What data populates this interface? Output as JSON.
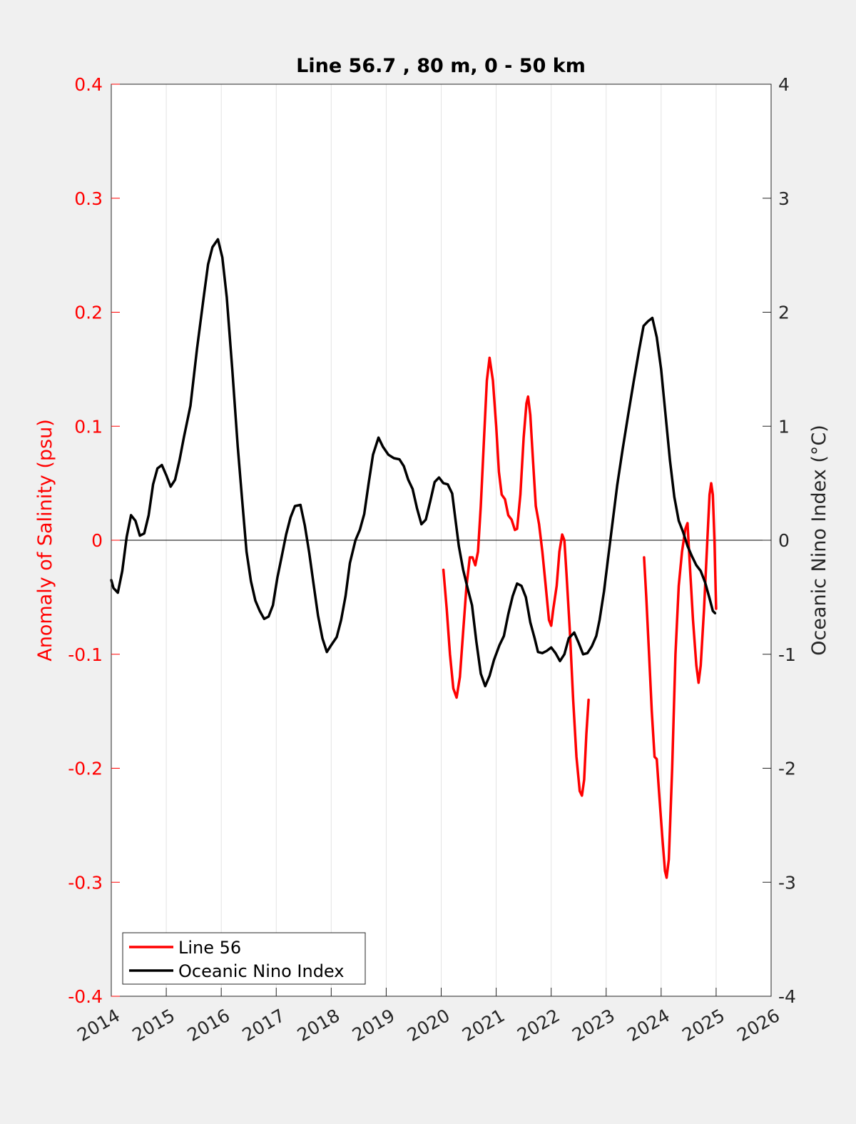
{
  "chart_data": {
    "type": "line",
    "title": "Line 56.7 , 80 m, 0 - 50 km",
    "xlabel": "",
    "ylabel_left": "Anomaly of Salinity (psu)",
    "ylabel_right": "Oceanic Nino Index (°C)",
    "xlim": [
      2014,
      2026
    ],
    "ylim_left": [
      -0.4,
      0.4
    ],
    "ylim_right": [
      -4,
      4
    ],
    "x_ticks": [
      "2014",
      "2015",
      "2016",
      "2017",
      "2018",
      "2019",
      "2020",
      "2021",
      "2022",
      "2023",
      "2024",
      "2025",
      "2026"
    ],
    "y_ticks_left": [
      "0.4",
      "0.3",
      "0.2",
      "0.1",
      "0",
      "-0.1",
      "-0.2",
      "-0.3",
      "-0.4"
    ],
    "y_ticks_right": [
      "4",
      "3",
      "2",
      "1",
      "0",
      "-1",
      "-2",
      "-3",
      "-4"
    ],
    "grid": "vertical",
    "zero_line": true,
    "legend_position": "bottom-left",
    "colors": {
      "left_axis": "#ff0000",
      "right_axis": "#000000"
    },
    "series": [
      {
        "name": "Line 56",
        "axis": "left",
        "color": "#ff0000",
        "segments": [
          [
            [
              2020.04,
              -0.026
            ],
            [
              2020.1,
              -0.06
            ],
            [
              2020.16,
              -0.1
            ],
            [
              2020.22,
              -0.13
            ],
            [
              2020.28,
              -0.138
            ],
            [
              2020.34,
              -0.12
            ],
            [
              2020.4,
              -0.08
            ],
            [
              2020.46,
              -0.04
            ],
            [
              2020.52,
              -0.015
            ],
            [
              2020.57,
              -0.015
            ],
            [
              2020.62,
              -0.022
            ],
            [
              2020.67,
              -0.01
            ],
            [
              2020.72,
              0.03
            ],
            [
              2020.78,
              0.09
            ],
            [
              2020.83,
              0.14
            ],
            [
              2020.88,
              0.16
            ],
            [
              2020.94,
              0.14
            ],
            [
              2021.0,
              0.1
            ],
            [
              2021.05,
              0.06
            ],
            [
              2021.1,
              0.04
            ],
            [
              2021.16,
              0.036
            ],
            [
              2021.22,
              0.022
            ],
            [
              2021.28,
              0.018
            ],
            [
              2021.34,
              0.009
            ],
            [
              2021.38,
              0.01
            ],
            [
              2021.44,
              0.04
            ],
            [
              2021.5,
              0.09
            ],
            [
              2021.55,
              0.12
            ],
            [
              2021.58,
              0.126
            ],
            [
              2021.62,
              0.11
            ],
            [
              2021.67,
              0.07
            ],
            [
              2021.72,
              0.03
            ],
            [
              2021.78,
              0.014
            ],
            [
              2021.84,
              -0.01
            ],
            [
              2021.9,
              -0.04
            ],
            [
              2021.96,
              -0.07
            ],
            [
              2022.0,
              -0.075
            ],
            [
              2022.04,
              -0.06
            ],
            [
              2022.1,
              -0.04
            ],
            [
              2022.15,
              -0.01
            ],
            [
              2022.2,
              0.005
            ],
            [
              2022.24,
              0.0
            ],
            [
              2022.28,
              -0.03
            ],
            [
              2022.34,
              -0.08
            ],
            [
              2022.4,
              -0.14
            ],
            [
              2022.46,
              -0.19
            ],
            [
              2022.52,
              -0.22
            ],
            [
              2022.56,
              -0.224
            ],
            [
              2022.6,
              -0.21
            ],
            [
              2022.64,
              -0.17
            ],
            [
              2022.68,
              -0.14
            ]
          ],
          [
            [
              2023.69,
              -0.015
            ],
            [
              2023.73,
              -0.05
            ],
            [
              2023.78,
              -0.1
            ],
            [
              2023.83,
              -0.15
            ],
            [
              2023.88,
              -0.19
            ],
            [
              2023.92,
              -0.192
            ],
            [
              2023.96,
              -0.22
            ],
            [
              2024.02,
              -0.26
            ],
            [
              2024.07,
              -0.29
            ],
            [
              2024.1,
              -0.296
            ],
            [
              2024.14,
              -0.28
            ],
            [
              2024.2,
              -0.2
            ],
            [
              2024.26,
              -0.1
            ],
            [
              2024.32,
              -0.04
            ],
            [
              2024.38,
              -0.01
            ],
            [
              2024.44,
              0.01
            ],
            [
              2024.48,
              0.015
            ],
            [
              2024.52,
              -0.02
            ],
            [
              2024.58,
              -0.07
            ],
            [
              2024.64,
              -0.11
            ],
            [
              2024.68,
              -0.125
            ],
            [
              2024.72,
              -0.11
            ],
            [
              2024.78,
              -0.06
            ],
            [
              2024.84,
              0.0
            ],
            [
              2024.88,
              0.04
            ],
            [
              2024.91,
              0.05
            ],
            [
              2024.94,
              0.04
            ],
            [
              2024.97,
              0.0
            ],
            [
              2025.0,
              -0.06
            ]
          ]
        ]
      },
      {
        "name": "Oceanic Nino Index",
        "axis": "right",
        "color": "#000000",
        "points": [
          [
            2014.0,
            -0.35
          ],
          [
            2014.04,
            -0.42
          ],
          [
            2014.12,
            -0.46
          ],
          [
            2014.2,
            -0.27
          ],
          [
            2014.28,
            0.03
          ],
          [
            2014.36,
            0.22
          ],
          [
            2014.44,
            0.17
          ],
          [
            2014.52,
            0.04
          ],
          [
            2014.6,
            0.06
          ],
          [
            2014.68,
            0.22
          ],
          [
            2014.76,
            0.49
          ],
          [
            2014.84,
            0.63
          ],
          [
            2014.92,
            0.66
          ],
          [
            2015.0,
            0.57
          ],
          [
            2015.08,
            0.47
          ],
          [
            2015.16,
            0.53
          ],
          [
            2015.24,
            0.7
          ],
          [
            2015.32,
            0.9
          ],
          [
            2015.44,
            1.18
          ],
          [
            2015.56,
            1.68
          ],
          [
            2015.68,
            2.13
          ],
          [
            2015.76,
            2.42
          ],
          [
            2015.84,
            2.57
          ],
          [
            2015.94,
            2.64
          ],
          [
            2016.02,
            2.48
          ],
          [
            2016.1,
            2.13
          ],
          [
            2016.2,
            1.5
          ],
          [
            2016.3,
            0.82
          ],
          [
            2016.38,
            0.35
          ],
          [
            2016.46,
            -0.1
          ],
          [
            2016.54,
            -0.36
          ],
          [
            2016.62,
            -0.53
          ],
          [
            2016.7,
            -0.62
          ],
          [
            2016.78,
            -0.69
          ],
          [
            2016.86,
            -0.67
          ],
          [
            2016.94,
            -0.57
          ],
          [
            2017.02,
            -0.33
          ],
          [
            2017.1,
            -0.14
          ],
          [
            2017.18,
            0.05
          ],
          [
            2017.26,
            0.2
          ],
          [
            2017.34,
            0.3
          ],
          [
            2017.44,
            0.31
          ],
          [
            2017.52,
            0.13
          ],
          [
            2017.6,
            -0.11
          ],
          [
            2017.68,
            -0.39
          ],
          [
            2017.76,
            -0.66
          ],
          [
            2017.84,
            -0.86
          ],
          [
            2017.92,
            -0.98
          ],
          [
            2018.0,
            -0.92
          ],
          [
            2018.1,
            -0.85
          ],
          [
            2018.18,
            -0.7
          ],
          [
            2018.26,
            -0.49
          ],
          [
            2018.34,
            -0.2
          ],
          [
            2018.44,
            0.0
          ],
          [
            2018.52,
            0.09
          ],
          [
            2018.6,
            0.23
          ],
          [
            2018.68,
            0.5
          ],
          [
            2018.76,
            0.75
          ],
          [
            2018.86,
            0.9
          ],
          [
            2018.94,
            0.82
          ],
          [
            2019.04,
            0.75
          ],
          [
            2019.14,
            0.72
          ],
          [
            2019.24,
            0.71
          ],
          [
            2019.32,
            0.65
          ],
          [
            2019.4,
            0.53
          ],
          [
            2019.48,
            0.45
          ],
          [
            2019.56,
            0.28
          ],
          [
            2019.64,
            0.14
          ],
          [
            2019.72,
            0.18
          ],
          [
            2019.8,
            0.34
          ],
          [
            2019.88,
            0.51
          ],
          [
            2019.96,
            0.55
          ],
          [
            2020.04,
            0.5
          ],
          [
            2020.12,
            0.49
          ],
          [
            2020.2,
            0.41
          ],
          [
            2020.26,
            0.18
          ],
          [
            2020.32,
            -0.05
          ],
          [
            2020.4,
            -0.26
          ],
          [
            2020.48,
            -0.42
          ],
          [
            2020.56,
            -0.57
          ],
          [
            2020.64,
            -0.89
          ],
          [
            2020.72,
            -1.17
          ],
          [
            2020.8,
            -1.28
          ],
          [
            2020.88,
            -1.19
          ],
          [
            2020.96,
            -1.05
          ],
          [
            2021.06,
            -0.92
          ],
          [
            2021.14,
            -0.84
          ],
          [
            2021.22,
            -0.65
          ],
          [
            2021.3,
            -0.49
          ],
          [
            2021.38,
            -0.38
          ],
          [
            2021.46,
            -0.4
          ],
          [
            2021.54,
            -0.5
          ],
          [
            2021.62,
            -0.72
          ],
          [
            2021.7,
            -0.86
          ],
          [
            2021.76,
            -0.98
          ],
          [
            2021.84,
            -0.99
          ],
          [
            2021.92,
            -0.97
          ],
          [
            2022.0,
            -0.94
          ],
          [
            2022.08,
            -0.99
          ],
          [
            2022.16,
            -1.06
          ],
          [
            2022.24,
            -1.0
          ],
          [
            2022.32,
            -0.86
          ],
          [
            2022.42,
            -0.81
          ],
          [
            2022.5,
            -0.9
          ],
          [
            2022.58,
            -1.0
          ],
          [
            2022.66,
            -0.99
          ],
          [
            2022.74,
            -0.93
          ],
          [
            2022.82,
            -0.84
          ],
          [
            2022.88,
            -0.7
          ],
          [
            2022.96,
            -0.45
          ],
          [
            2023.04,
            -0.14
          ],
          [
            2023.12,
            0.17
          ],
          [
            2023.2,
            0.48
          ],
          [
            2023.3,
            0.8
          ],
          [
            2023.4,
            1.1
          ],
          [
            2023.5,
            1.39
          ],
          [
            2023.6,
            1.67
          ],
          [
            2023.68,
            1.88
          ],
          [
            2023.76,
            1.92
          ],
          [
            2023.84,
            1.95
          ],
          [
            2023.92,
            1.78
          ],
          [
            2024.0,
            1.5
          ],
          [
            2024.08,
            1.1
          ],
          [
            2024.16,
            0.7
          ],
          [
            2024.24,
            0.38
          ],
          [
            2024.32,
            0.17
          ],
          [
            2024.4,
            0.07
          ],
          [
            2024.48,
            -0.05
          ],
          [
            2024.56,
            -0.14
          ],
          [
            2024.64,
            -0.22
          ],
          [
            2024.72,
            -0.27
          ],
          [
            2024.8,
            -0.37
          ],
          [
            2024.88,
            -0.51
          ],
          [
            2024.94,
            -0.62
          ],
          [
            2024.98,
            -0.64
          ]
        ]
      }
    ]
  }
}
